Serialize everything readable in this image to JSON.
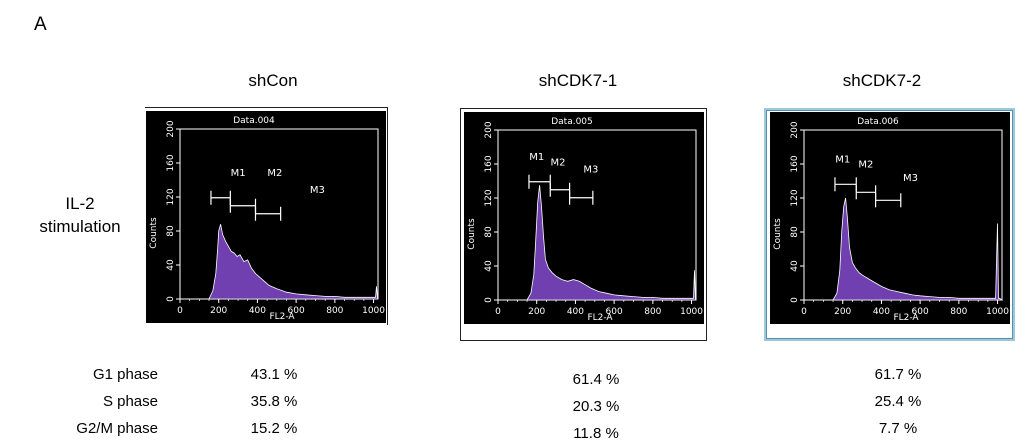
{
  "panel_letter": "A",
  "row_label": [
    "IL-2",
    "stimulation"
  ],
  "stat_labels": [
    "G1 phase",
    "S phase",
    "G2/M phase"
  ],
  "colors": {
    "histogram_fill": "#7040b0",
    "histogram_outline": "#ffffff",
    "plot_bg": "#000000",
    "axis": "#ffffff"
  },
  "chart_data": [
    {
      "type": "area",
      "column_title": "shCon",
      "title": "Data.004",
      "xlabel": "FL2-A",
      "ylabel": "Counts",
      "xlim": [
        0,
        1023
      ],
      "ylim": [
        0,
        200
      ],
      "xticks": [
        "0",
        "200",
        "400",
        "600",
        "800",
        "1000"
      ],
      "yticks": [
        "0",
        "40",
        "80",
        "120",
        "160",
        "200"
      ],
      "gates": [
        {
          "label": "M1",
          "range": [
            160,
            260
          ],
          "label_x": 300,
          "label_y": 145
        },
        {
          "label": "M2",
          "range": [
            260,
            390
          ],
          "label_x": 490,
          "label_y": 145
        },
        {
          "label": "M3",
          "range": [
            390,
            520
          ],
          "label_x": 710,
          "label_y": 125
        }
      ],
      "histogram": {
        "x": [
          0,
          150,
          170,
          185,
          195,
          200,
          210,
          220,
          235,
          250,
          265,
          280,
          295,
          310,
          330,
          350,
          370,
          390,
          410,
          430,
          460,
          500,
          550,
          600,
          650,
          700,
          750,
          800,
          850,
          900,
          950,
          1000,
          1010,
          1015,
          1020,
          1023
        ],
        "y": [
          0,
          0,
          10,
          30,
          60,
          80,
          88,
          76,
          68,
          62,
          56,
          54,
          50,
          52,
          44,
          46,
          36,
          30,
          26,
          22,
          16,
          12,
          8,
          6,
          5,
          4,
          3,
          3,
          2,
          2,
          2,
          2,
          2,
          15,
          2,
          0
        ]
      },
      "stats": [
        "43.1 %",
        "35.8 %",
        "15.2 %"
      ]
    },
    {
      "type": "area",
      "column_title": "shCDK7-1",
      "title": "Data.005",
      "xlabel": "FL2-A",
      "ylabel": "Counts",
      "xlim": [
        0,
        1023
      ],
      "ylim": [
        0,
        200
      ],
      "xticks": [
        "0",
        "200",
        "400",
        "600",
        "800",
        "1000"
      ],
      "yticks": [
        "0",
        "40",
        "80",
        "120",
        "160",
        "200"
      ],
      "gates": [
        {
          "label": "M1",
          "range": [
            160,
            270
          ],
          "label_x": 200,
          "label_y": 165
        },
        {
          "label": "M2",
          "range": [
            270,
            370
          ],
          "label_x": 310,
          "label_y": 158
        },
        {
          "label": "M3",
          "range": [
            370,
            490
          ],
          "label_x": 480,
          "label_y": 150
        }
      ],
      "histogram": {
        "x": [
          0,
          150,
          170,
          185,
          195,
          205,
          215,
          225,
          235,
          245,
          260,
          280,
          300,
          330,
          360,
          390,
          420,
          450,
          480,
          520,
          560,
          600,
          650,
          700,
          750,
          800,
          850,
          900,
          950,
          1000,
          1010,
          1015,
          1020,
          1023
        ],
        "y": [
          0,
          0,
          8,
          30,
          70,
          115,
          135,
          110,
          75,
          48,
          38,
          32,
          28,
          24,
          22,
          24,
          22,
          18,
          14,
          10,
          8,
          6,
          5,
          4,
          3,
          3,
          2,
          2,
          2,
          2,
          2,
          35,
          2,
          0
        ]
      },
      "stats": [
        "61.4 %",
        "20.3 %",
        "11.8 %"
      ]
    },
    {
      "type": "area",
      "column_title": "shCDK7-2",
      "title": "Data.006",
      "xlabel": "FL2-A",
      "ylabel": "Counts",
      "xlim": [
        0,
        1023
      ],
      "ylim": [
        0,
        200
      ],
      "xticks": [
        "0",
        "200",
        "400",
        "600",
        "800",
        "1000"
      ],
      "yticks": [
        "0",
        "40",
        "80",
        "120",
        "160",
        "200"
      ],
      "gates": [
        {
          "label": "M1",
          "range": [
            160,
            270
          ],
          "label_x": 200,
          "label_y": 162
        },
        {
          "label": "M2",
          "range": [
            270,
            370
          ],
          "label_x": 320,
          "label_y": 156
        },
        {
          "label": "M3",
          "range": [
            370,
            500
          ],
          "label_x": 550,
          "label_y": 140
        }
      ],
      "histogram": {
        "x": [
          0,
          150,
          170,
          185,
          195,
          205,
          215,
          225,
          235,
          250,
          265,
          285,
          310,
          340,
          370,
          400,
          440,
          480,
          520,
          560,
          600,
          650,
          700,
          750,
          800,
          850,
          900,
          950,
          990,
          1000,
          1005,
          1010,
          1023
        ],
        "y": [
          0,
          0,
          8,
          35,
          80,
          110,
          120,
          95,
          62,
          44,
          38,
          32,
          28,
          24,
          20,
          16,
          12,
          10,
          8,
          6,
          5,
          4,
          3,
          3,
          2,
          2,
          2,
          2,
          2,
          90,
          2,
          2,
          0
        ]
      },
      "stats": [
        "61.7 %",
        "25.4 %",
        "7.7 %"
      ]
    }
  ]
}
